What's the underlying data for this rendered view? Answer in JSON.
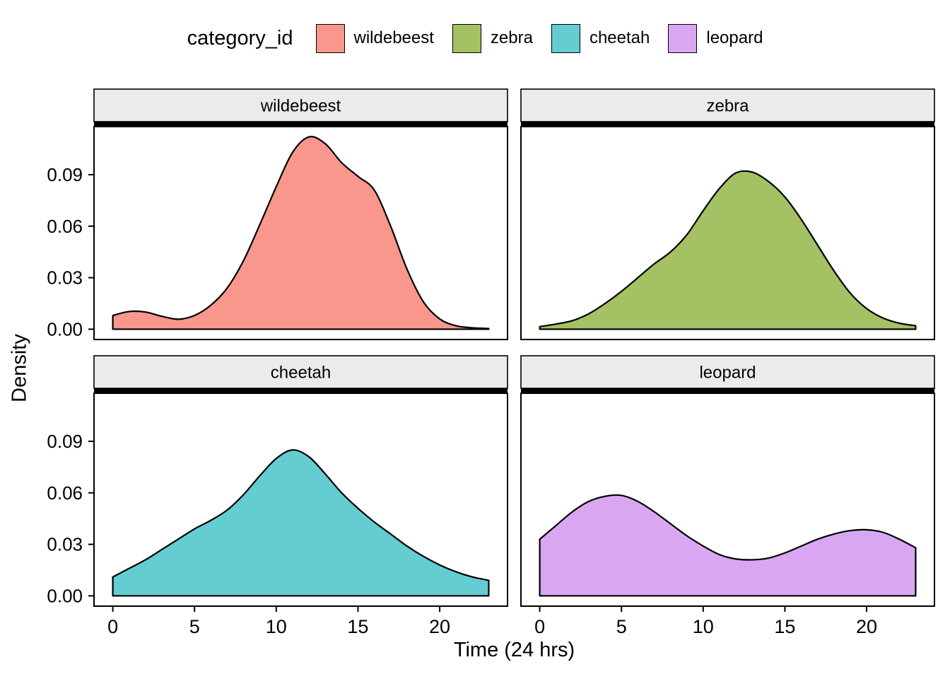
{
  "styles": {
    "stroke": "#000000",
    "strip_bg": "#EBEBEB",
    "panel_bg": "#FFFFFF",
    "text": "#000000"
  },
  "chart_data": {
    "type": "area",
    "subtype": "faceted-density",
    "title": "",
    "legend_title": "category_id",
    "xlabel": "Time (24 hrs)",
    "ylabel": "Density",
    "legend_position": "top",
    "grid": false,
    "x": [
      0,
      1,
      2,
      3,
      4,
      5,
      6,
      7,
      8,
      9,
      10,
      11,
      12,
      13,
      14,
      15,
      16,
      17,
      18,
      19,
      20,
      21,
      22,
      23
    ],
    "x_ticks": [
      0,
      5,
      10,
      15,
      20
    ],
    "y_ticks": {
      "values": [
        0,
        0.03,
        0.06,
        0.09
      ],
      "labels": [
        "0.00",
        "0.03",
        "0.06",
        "0.09"
      ]
    },
    "x_range": [
      -1.15,
      24.15
    ],
    "y_range": [
      -0.006,
      0.118
    ],
    "facets": [
      {
        "label": "wildebeest",
        "color": "#F9978D",
        "density": [
          0.008,
          0.0103,
          0.01,
          0.0075,
          0.0058,
          0.008,
          0.014,
          0.024,
          0.04,
          0.061,
          0.083,
          0.103,
          0.112,
          0.108,
          0.097,
          0.089,
          0.081,
          0.06,
          0.035,
          0.016,
          0.006,
          0.002,
          0.0008,
          0.0004
        ]
      },
      {
        "label": "zebra",
        "color": "#A4C163",
        "density": [
          0.0015,
          0.003,
          0.005,
          0.009,
          0.015,
          0.022,
          0.03,
          0.038,
          0.045,
          0.055,
          0.069,
          0.082,
          0.091,
          0.0915,
          0.086,
          0.077,
          0.064,
          0.049,
          0.034,
          0.021,
          0.012,
          0.0065,
          0.0035,
          0.002
        ]
      },
      {
        "label": "cheetah",
        "color": "#63CDD2",
        "density": [
          0.011,
          0.016,
          0.021,
          0.027,
          0.033,
          0.039,
          0.044,
          0.05,
          0.059,
          0.07,
          0.08,
          0.085,
          0.081,
          0.071,
          0.06,
          0.051,
          0.043,
          0.036,
          0.029,
          0.023,
          0.018,
          0.014,
          0.011,
          0.009
        ]
      },
      {
        "label": "leopard",
        "color": "#D9A7F2",
        "density": [
          0.033,
          0.041,
          0.049,
          0.055,
          0.058,
          0.0585,
          0.055,
          0.049,
          0.042,
          0.035,
          0.029,
          0.024,
          0.0215,
          0.021,
          0.022,
          0.025,
          0.029,
          0.033,
          0.036,
          0.038,
          0.0385,
          0.037,
          0.033,
          0.028
        ]
      }
    ]
  }
}
